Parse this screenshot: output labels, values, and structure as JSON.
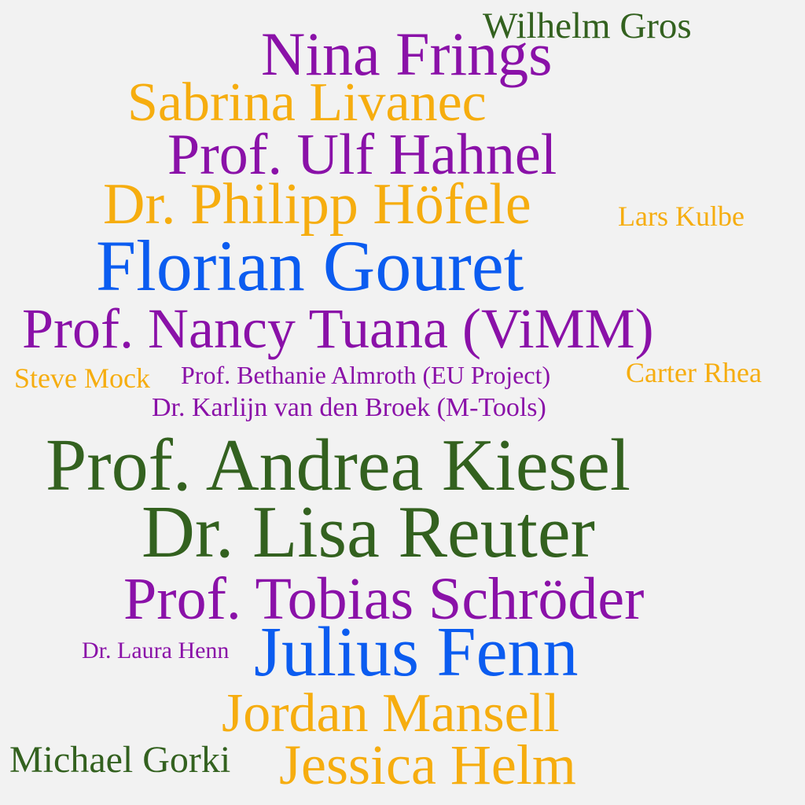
{
  "colors": {
    "background": "#f2f2f2",
    "purple": "#8a11a8",
    "orange": "#f6ad0f",
    "blue": "#0b5cf0",
    "green": "#33611f"
  },
  "words": [
    {
      "text": "Wilhelm Gros",
      "color": "green"
    },
    {
      "text": "Nina Frings",
      "color": "purple"
    },
    {
      "text": "Sabrina Livanec",
      "color": "orange"
    },
    {
      "text": "Prof. Ulf Hahnel",
      "color": "purple"
    },
    {
      "text": "Dr. Philipp Höfele",
      "color": "orange"
    },
    {
      "text": "Lars Kulbe",
      "color": "orange"
    },
    {
      "text": "Florian Gouret",
      "color": "blue"
    },
    {
      "text": "Prof. Nancy Tuana (ViMM)",
      "color": "purple"
    },
    {
      "text": "Steve Mock",
      "color": "orange"
    },
    {
      "text": "Prof. Bethanie Almroth (EU Project)",
      "color": "purple"
    },
    {
      "text": "Carter Rhea",
      "color": "orange"
    },
    {
      "text": "Dr. Karlijn van den Broek (M-Tools)",
      "color": "purple"
    },
    {
      "text": "Prof. Andrea Kiesel",
      "color": "green"
    },
    {
      "text": "Dr. Lisa Reuter",
      "color": "green"
    },
    {
      "text": "Prof. Tobias Schröder",
      "color": "purple"
    },
    {
      "text": "Dr. Laura Henn",
      "color": "purple"
    },
    {
      "text": "Julius Fenn",
      "color": "blue"
    },
    {
      "text": "Jordan Mansell",
      "color": "orange"
    },
    {
      "text": "Michael Gorki",
      "color": "green"
    },
    {
      "text": "Jessica Helm",
      "color": "orange"
    }
  ]
}
